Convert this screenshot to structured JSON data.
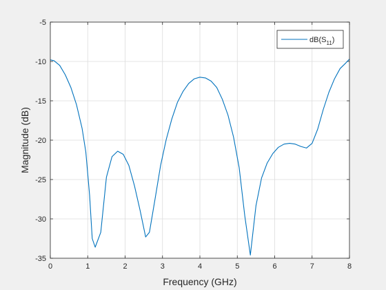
{
  "chart_data": {
    "type": "line",
    "xlabel": "Frequency (GHz)",
    "ylabel": "Magnitude (dB)",
    "xlim": [
      0,
      8
    ],
    "ylim": [
      -35,
      -5
    ],
    "xticks": [
      "0",
      "1",
      "2",
      "3",
      "4",
      "5",
      "6",
      "7",
      "8"
    ],
    "yticks": [
      "-5",
      "-10",
      "-15",
      "-20",
      "-25",
      "-30",
      "-35"
    ],
    "grid": true,
    "legend_position": "top-right",
    "series": [
      {
        "name": "dB(S11)",
        "legend_base": "dB(S",
        "legend_sub": "11",
        "legend_close": ")",
        "color": "#0072bd",
        "x": [
          0,
          0.1,
          0.25,
          0.4,
          0.55,
          0.7,
          0.85,
          0.95,
          1.05,
          1.12,
          1.2,
          1.35,
          1.5,
          1.65,
          1.8,
          1.95,
          2.1,
          2.25,
          2.4,
          2.55,
          2.65,
          2.8,
          2.95,
          3.1,
          3.25,
          3.4,
          3.55,
          3.7,
          3.85,
          4.0,
          4.15,
          4.3,
          4.45,
          4.6,
          4.75,
          4.9,
          5.05,
          5.2,
          5.35,
          5.5,
          5.65,
          5.8,
          5.95,
          6.1,
          6.25,
          6.4,
          6.55,
          6.7,
          6.85,
          7.0,
          7.15,
          7.3,
          7.45,
          7.6,
          7.75,
          7.9,
          8.0
        ],
        "y": [
          -9.8,
          -9.9,
          -10.5,
          -11.7,
          -13.3,
          -15.5,
          -18.5,
          -21.5,
          -27,
          -32.5,
          -33.6,
          -31.7,
          -24.7,
          -22.1,
          -21.4,
          -21.8,
          -23.2,
          -25.8,
          -28.9,
          -32.3,
          -31.7,
          -27.5,
          -23.2,
          -19.9,
          -17.3,
          -15.2,
          -13.8,
          -12.8,
          -12.2,
          -12.0,
          -12.1,
          -12.5,
          -13.3,
          -14.8,
          -16.8,
          -19.6,
          -23.5,
          -29.6,
          -34.6,
          -28.3,
          -24.8,
          -22.9,
          -21.7,
          -20.9,
          -20.5,
          -20.4,
          -20.5,
          -20.8,
          -21.0,
          -20.4,
          -18.6,
          -16.1,
          -13.9,
          -12.2,
          -10.9,
          -10.2,
          -9.7
        ]
      }
    ]
  }
}
